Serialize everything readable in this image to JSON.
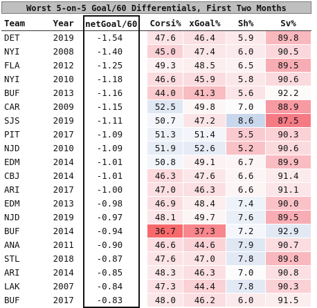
{
  "title": "Worst 5-on-5 Goal/60 Differentials, First Two Months",
  "columns": {
    "team": "Team",
    "year": "Year",
    "net": "netGoal/60",
    "corsi": "Corsi%",
    "xgoal": "xGoal%",
    "sh": "Sh%",
    "sv": "Sv%"
  },
  "rows": [
    {
      "team": "DET",
      "year": "2019",
      "net": "-1.54",
      "corsi": "47.6",
      "xgoal": "46.4",
      "sh": "5.9",
      "sv": "89.8",
      "c_corsi": "#fbe3e6",
      "c_xgoal": "#fbe0e3",
      "c_sh": "#fbe9ec",
      "c_sv": "#f9b8be"
    },
    {
      "team": "NYI",
      "year": "2008",
      "net": "-1.40",
      "corsi": "45.0",
      "xgoal": "47.4",
      "sh": "6.0",
      "sv": "90.5",
      "c_corsi": "#fad1d5",
      "c_xgoal": "#fbe6e9",
      "c_sh": "#fbeaed",
      "c_sv": "#fbd7db"
    },
    {
      "team": "FLA",
      "year": "2012",
      "net": "-1.25",
      "corsi": "49.3",
      "xgoal": "48.5",
      "sh": "6.5",
      "sv": "89.5",
      "c_corsi": "#fcf0f2",
      "c_xgoal": "#fcedef",
      "c_sh": "#fcf2f4",
      "c_sv": "#f8adb4"
    },
    {
      "team": "NYI",
      "year": "2010",
      "net": "-1.18",
      "corsi": "46.6",
      "xgoal": "45.9",
      "sh": "5.8",
      "sv": "90.6",
      "c_corsi": "#fbdce0",
      "c_xgoal": "#fbdde0",
      "c_sh": "#fbe7ea",
      "c_sv": "#fbdade"
    },
    {
      "team": "BUF",
      "year": "2013",
      "net": "-1.16",
      "corsi": "44.0",
      "xgoal": "41.3",
      "sh": "5.6",
      "sv": "92.2",
      "c_corsi": "#facbcf",
      "c_xgoal": "#f8bcc1",
      "c_sh": "#fbe4e7",
      "c_sv": "#fdfafa"
    },
    {
      "team": "CAR",
      "year": "2009",
      "net": "-1.15",
      "corsi": "52.5",
      "xgoal": "49.8",
      "sh": "7.0",
      "sv": "88.9",
      "c_corsi": "#dfe7f3",
      "c_xgoal": "#fcf6f7",
      "c_sh": "#fdfcfc",
      "c_sv": "#f79aa2"
    },
    {
      "team": "SJS",
      "year": "2019",
      "net": "-1.11",
      "corsi": "50.7",
      "xgoal": "47.2",
      "sh": "8.6",
      "sv": "87.5",
      "c_corsi": "#f4f6fb",
      "c_xgoal": "#fbe4e7",
      "c_sh": "#c9d7ed",
      "c_sv": "#f57a84"
    },
    {
      "team": "PIT",
      "year": "2017",
      "net": "-1.09",
      "corsi": "51.3",
      "xgoal": "51.4",
      "sh": "5.5",
      "sv": "90.3",
      "c_corsi": "#eef2f8",
      "c_xgoal": "#f3f5fa",
      "c_sh": "#f9cbd0",
      "c_sv": "#fad1d5"
    },
    {
      "team": "NJD",
      "year": "2010",
      "net": "-1.09",
      "corsi": "51.9",
      "xgoal": "52.6",
      "sh": "5.2",
      "sv": "90.6",
      "c_corsi": "#e7edf6",
      "c_xgoal": "#e6ecf6",
      "c_sh": "#f9c2c7",
      "c_sv": "#fbdade"
    },
    {
      "team": "EDM",
      "year": "2014",
      "net": "-1.01",
      "corsi": "50.8",
      "xgoal": "49.1",
      "sh": "6.7",
      "sv": "89.9",
      "c_corsi": "#f3f6fb",
      "c_xgoal": "#fcf1f3",
      "c_sh": "#fcf5f6",
      "c_sv": "#f9bcc2"
    },
    {
      "team": "CBJ",
      "year": "2014",
      "net": "-1.01",
      "corsi": "46.3",
      "xgoal": "47.6",
      "sh": "6.6",
      "sv": "91.4",
      "c_corsi": "#fbd9dd",
      "c_xgoal": "#fbe7ea",
      "c_sh": "#fcf4f5",
      "c_sv": "#fcebed"
    },
    {
      "team": "ARI",
      "year": "2017",
      "net": "-1.00",
      "corsi": "47.0",
      "xgoal": "46.3",
      "sh": "6.6",
      "sv": "91.1",
      "c_corsi": "#fbdfe2",
      "c_xgoal": "#fbdfe2",
      "c_sh": "#fcf4f5",
      "c_sv": "#fbe5e8"
    },
    {
      "team": "EDM",
      "year": "2013",
      "net": "-0.98",
      "corsi": "46.9",
      "xgoal": "48.4",
      "sh": "7.4",
      "sv": "90.0",
      "c_corsi": "#fbdee1",
      "c_xgoal": "#fcedef",
      "c_sh": "#eef2f9",
      "c_sv": "#fac2c7"
    },
    {
      "team": "NJD",
      "year": "2019",
      "net": "-0.97",
      "corsi": "48.1",
      "xgoal": "49.7",
      "sh": "7.6",
      "sv": "89.5",
      "c_corsi": "#fbe6e9",
      "c_xgoal": "#fcf5f6",
      "c_sh": "#e9eef7",
      "c_sv": "#f8adb4"
    },
    {
      "team": "BUF",
      "year": "2014",
      "net": "-0.94",
      "corsi": "36.7",
      "xgoal": "37.3",
      "sh": "7.2",
      "sv": "92.9",
      "c_corsi": "#f8696b",
      "c_xgoal": "#f8868d",
      "c_sh": "#f4f6fb",
      "c_sv": "#e2e9f5"
    },
    {
      "team": "ANA",
      "year": "2011",
      "net": "-0.90",
      "corsi": "46.6",
      "xgoal": "44.6",
      "sh": "7.9",
      "sv": "90.7",
      "c_corsi": "#fbdce0",
      "c_xgoal": "#fad3d7",
      "c_sh": "#dfe7f3",
      "c_sv": "#fbdde0"
    },
    {
      "team": "STL",
      "year": "2018",
      "net": "-0.87",
      "corsi": "47.6",
      "xgoal": "47.0",
      "sh": "7.8",
      "sv": "89.8",
      "c_corsi": "#fbe3e6",
      "c_xgoal": "#fbe3e6",
      "c_sh": "#e2e9f5",
      "c_sv": "#f9b8be"
    },
    {
      "team": "ARI",
      "year": "2014",
      "net": "-0.85",
      "corsi": "48.3",
      "xgoal": "46.3",
      "sh": "7.0",
      "sv": "90.8",
      "c_corsi": "#fbe8eb",
      "c_xgoal": "#fbdfe2",
      "c_sh": "#fdfcfc",
      "c_sv": "#fbdfe2"
    },
    {
      "team": "LAK",
      "year": "2007",
      "net": "-0.84",
      "corsi": "47.3",
      "xgoal": "44.4",
      "sh": "7.8",
      "sv": "90.3",
      "c_corsi": "#fbe1e4",
      "c_xgoal": "#fad1d5",
      "c_sh": "#e2e9f5",
      "c_sv": "#fad1d5"
    },
    {
      "team": "BUF",
      "year": "2017",
      "net": "-0.83",
      "corsi": "48.0",
      "xgoal": "46.2",
      "sh": "6.0",
      "sv": "91.5",
      "c_corsi": "#fbe6e9",
      "c_xgoal": "#fbdee1",
      "c_sh": "#fbeaed",
      "c_sv": "#fcedef"
    }
  ]
}
